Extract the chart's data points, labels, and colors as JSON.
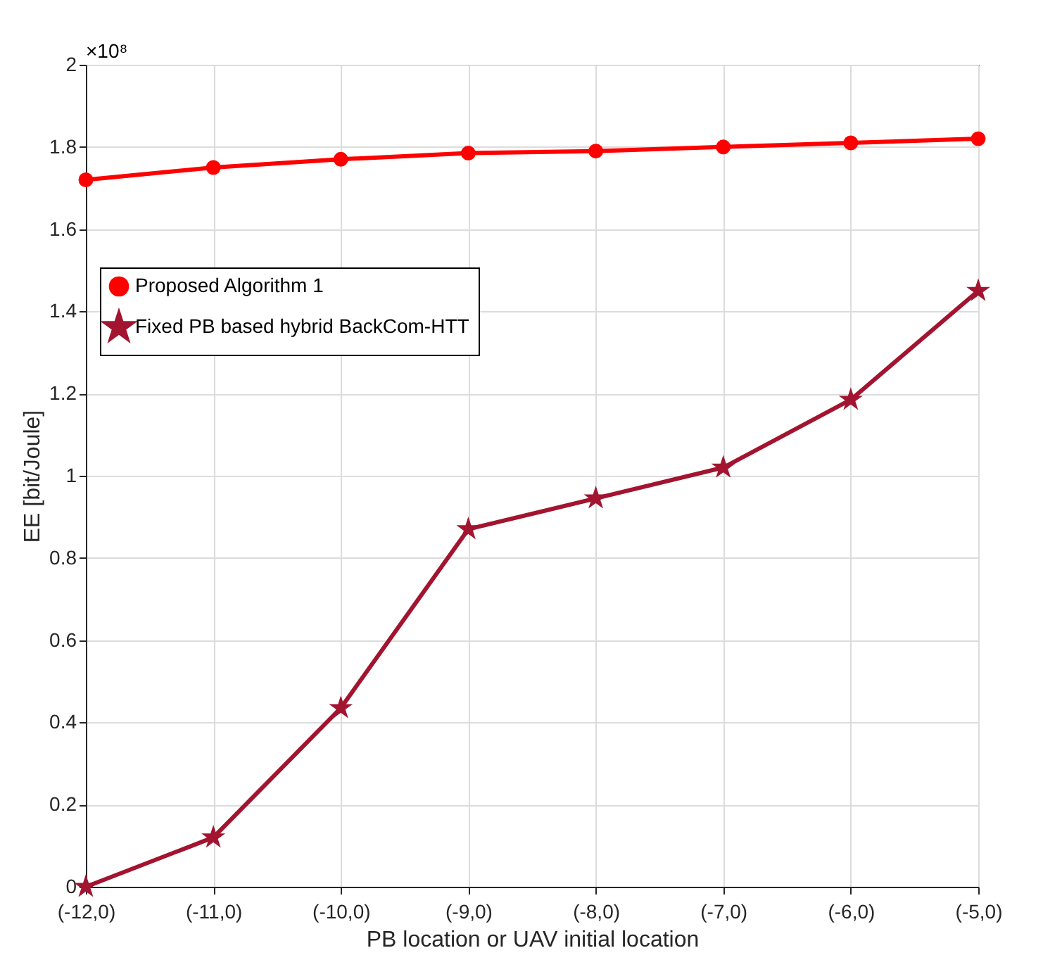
{
  "chart_data": {
    "type": "line",
    "xlabel": "PB location or UAV initial location",
    "ylabel": "EE [bit/Joule]",
    "categories": [
      "(-12,0)",
      "(-11,0)",
      "(-10,0)",
      "(-9,0)",
      "(-8,0)",
      "(-7,0)",
      "(-6,0)",
      "(-5,0)"
    ],
    "series": [
      {
        "name": "Proposed Algorithm 1",
        "color": "#ff0000",
        "marker": "circle",
        "values": [
          1.72,
          1.75,
          1.77,
          1.785,
          1.79,
          1.8,
          1.81,
          1.82
        ]
      },
      {
        "name": "Fixed PB based hybrid BackCom-HTT",
        "color": "#a2142f",
        "marker": "star",
        "values": [
          0.0,
          0.12,
          0.435,
          0.87,
          0.945,
          1.02,
          1.185,
          1.45
        ]
      }
    ],
    "ylim": [
      0,
      2
    ],
    "yticks": [
      0,
      0.2,
      0.4,
      0.6,
      0.8,
      1,
      1.2,
      1.4,
      1.6,
      1.8,
      2
    ],
    "annotations": [
      "×10⁸"
    ],
    "grid": true,
    "legend": "top left",
    "line_style": "solid"
  }
}
